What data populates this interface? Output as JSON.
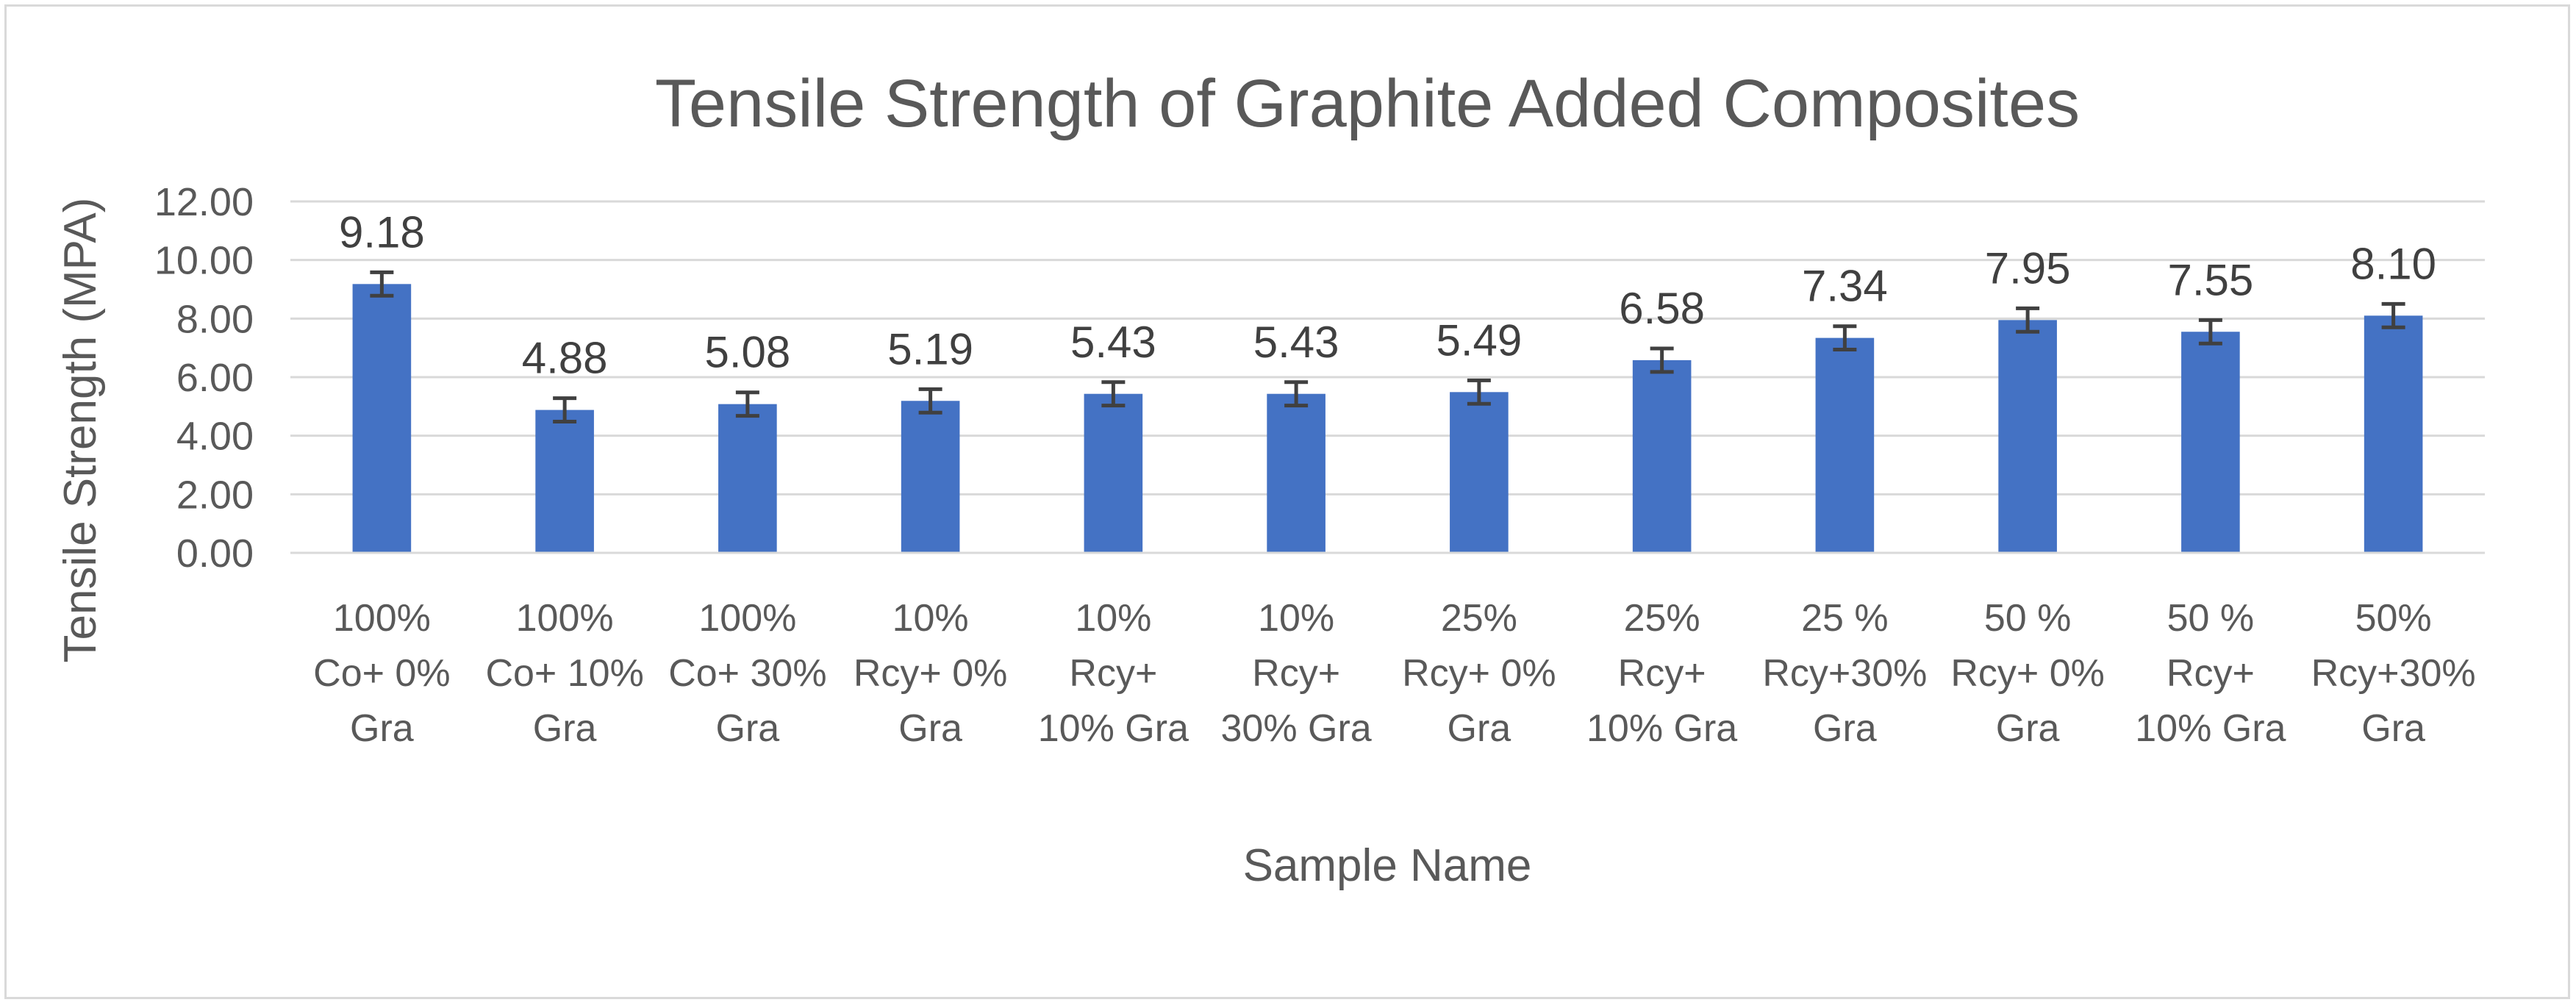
{
  "chart_data": {
    "type": "bar",
    "title": "Tensile Strength of Graphite Added Composites",
    "xlabel": "Sample Name",
    "ylabel": "Tensile Strength (MPA)",
    "ylim": [
      0,
      12
    ],
    "yticks": [
      "0.00",
      "2.00",
      "4.00",
      "6.00",
      "8.00",
      "10.00",
      "12.00"
    ],
    "grid": true,
    "legend": "none",
    "bar_color": "#4472c4",
    "categories": [
      [
        "100%",
        "Co+ 0%",
        "Gra"
      ],
      [
        "100%",
        "Co+ 10%",
        "Gra"
      ],
      [
        "100%",
        "Co+ 30%",
        "Gra"
      ],
      [
        "10%",
        "Rcy+ 0%",
        "Gra"
      ],
      [
        "10%",
        "Rcy+",
        "10% Gra"
      ],
      [
        "10%",
        "Rcy+",
        "30% Gra"
      ],
      [
        "25%",
        "Rcy+ 0%",
        "Gra"
      ],
      [
        "25%",
        "Rcy+",
        "10% Gra"
      ],
      [
        "25 %",
        "Rcy+30%",
        "Gra"
      ],
      [
        "50 %",
        "Rcy+ 0%",
        "Gra"
      ],
      [
        "50 %",
        "Rcy+",
        "10% Gra"
      ],
      [
        "50%",
        "Rcy+30%",
        "Gra"
      ]
    ],
    "values": [
      9.18,
      4.88,
      5.08,
      5.19,
      5.43,
      5.43,
      5.49,
      6.58,
      7.34,
      7.95,
      7.55,
      8.1
    ],
    "value_labels": [
      "9.18",
      "4.88",
      "5.08",
      "5.19",
      "5.43",
      "5.43",
      "5.49",
      "6.58",
      "7.34",
      "7.95",
      "7.55",
      "8.10"
    ],
    "error": [
      0.4,
      0.4,
      0.4,
      0.4,
      0.4,
      0.4,
      0.4,
      0.4,
      0.4,
      0.4,
      0.4,
      0.4
    ]
  }
}
